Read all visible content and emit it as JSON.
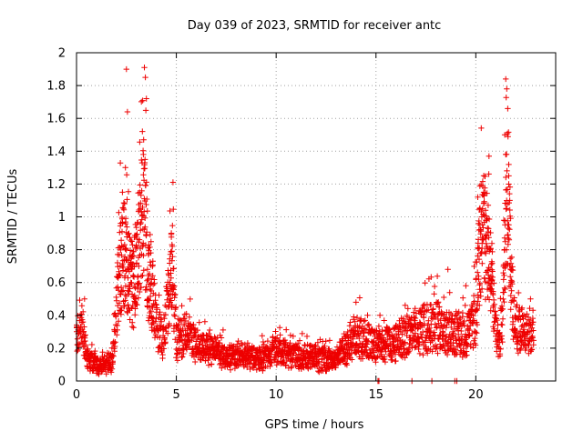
{
  "chart_data": {
    "type": "scatter",
    "title": "Day 039 of 2023, SRMTID for receiver antc",
    "xlabel": "GPS time / hours",
    "ylabel": "SRMTID / TECUs",
    "xlim": [
      0,
      24
    ],
    "ylim": [
      0,
      2
    ],
    "x_ticks": [
      0,
      5,
      10,
      15,
      20
    ],
    "x_tick_labels": [
      "0",
      "5",
      "10",
      "15",
      "20"
    ],
    "y_ticks": [
      0,
      0.2,
      0.4,
      0.6,
      0.8,
      1,
      1.2,
      1.4,
      1.6,
      1.8,
      2
    ],
    "y_tick_labels": [
      "0",
      "0.2",
      "0.4",
      "0.6",
      "0.8",
      "1",
      "1.2",
      "1.4",
      "1.6",
      "1.8",
      "2"
    ],
    "grid": true,
    "marker": "+",
    "colors": {
      "series": "#ee0000",
      "grid": "#a0a0a0",
      "axis": "#000000"
    },
    "envelope": {
      "x": [
        0.0,
        0.3,
        0.5,
        0.8,
        1.2,
        1.5,
        1.8,
        2.0,
        2.2,
        2.4,
        2.6,
        2.8,
        3.0,
        3.2,
        3.4,
        3.6,
        3.8,
        4.0,
        4.3,
        4.6,
        4.8,
        5.0,
        5.5,
        6.0,
        6.5,
        7.0,
        7.5,
        8.0,
        8.5,
        9.0,
        9.5,
        10.0,
        10.5,
        11.0,
        11.5,
        12.0,
        12.5,
        13.0,
        13.5,
        14.0,
        14.5,
        15.0,
        15.5,
        16.0,
        16.5,
        17.0,
        17.5,
        18.0,
        18.5,
        19.0,
        19.5,
        20.0,
        20.2,
        20.4,
        20.6,
        20.8,
        21.0,
        21.2,
        21.4,
        21.6,
        21.8,
        22.0,
        22.3,
        22.6,
        22.9
      ],
      "y": [
        0.28,
        0.32,
        0.15,
        0.12,
        0.09,
        0.1,
        0.15,
        0.45,
        0.72,
        0.8,
        0.65,
        0.6,
        0.7,
        0.95,
        1.1,
        0.7,
        0.55,
        0.35,
        0.25,
        0.5,
        0.7,
        0.25,
        0.3,
        0.22,
        0.2,
        0.18,
        0.16,
        0.15,
        0.17,
        0.14,
        0.16,
        0.2,
        0.17,
        0.16,
        0.15,
        0.14,
        0.13,
        0.14,
        0.2,
        0.3,
        0.26,
        0.22,
        0.22,
        0.24,
        0.28,
        0.3,
        0.32,
        0.35,
        0.3,
        0.3,
        0.28,
        0.4,
        0.85,
        0.95,
        0.8,
        0.6,
        0.35,
        0.25,
        0.55,
        1.2,
        0.55,
        0.35,
        0.3,
        0.28,
        0.3
      ]
    },
    "spikes": [
      {
        "x": 2.5,
        "y": 1.9
      },
      {
        "x": 2.55,
        "y": 1.64
      },
      {
        "x": 3.4,
        "y": 1.91
      },
      {
        "x": 3.45,
        "y": 1.85
      },
      {
        "x": 3.5,
        "y": 1.72
      },
      {
        "x": 3.3,
        "y": 1.52
      },
      {
        "x": 3.35,
        "y": 1.38
      },
      {
        "x": 2.3,
        "y": 1.15
      },
      {
        "x": 2.45,
        "y": 1.3
      },
      {
        "x": 4.75,
        "y": 0.9
      },
      {
        "x": 4.8,
        "y": 0.82
      },
      {
        "x": 0.4,
        "y": 0.5
      },
      {
        "x": 14.0,
        "y": 0.48
      },
      {
        "x": 15.2,
        "y": 0.4
      },
      {
        "x": 18.6,
        "y": 0.68
      },
      {
        "x": 19.5,
        "y": 0.58
      },
      {
        "x": 20.1,
        "y": 1.12
      },
      {
        "x": 20.2,
        "y": 1.05
      },
      {
        "x": 20.3,
        "y": 1.0
      },
      {
        "x": 21.5,
        "y": 1.84
      },
      {
        "x": 21.55,
        "y": 1.78
      },
      {
        "x": 21.6,
        "y": 1.66
      },
      {
        "x": 21.45,
        "y": 1.5
      },
      {
        "x": 21.5,
        "y": 1.38
      },
      {
        "x": 21.65,
        "y": 1.25
      },
      {
        "x": 21.7,
        "y": 1.1
      },
      {
        "x": 15.1,
        "y": 0.0
      },
      {
        "x": 15.15,
        "y": 0.0
      },
      {
        "x": 16.8,
        "y": 0.0
      },
      {
        "x": 17.8,
        "y": 0.0
      },
      {
        "x": 18.95,
        "y": 0.0
      },
      {
        "x": 19.05,
        "y": 0.0
      }
    ]
  }
}
